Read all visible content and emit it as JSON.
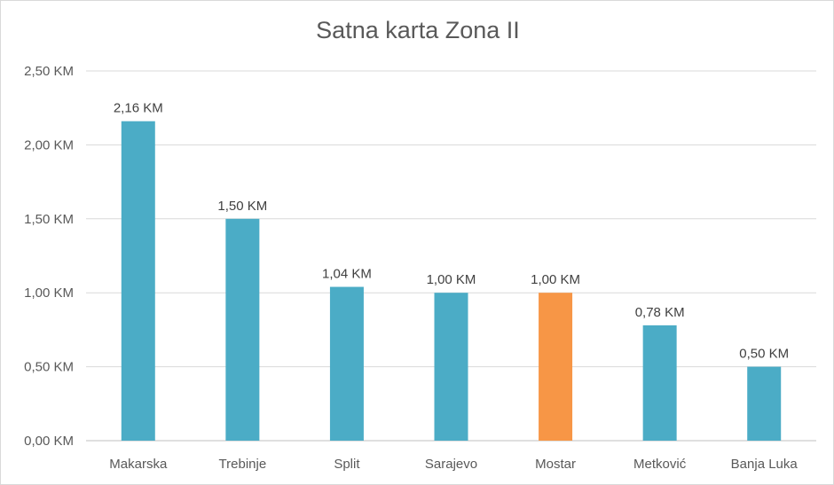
{
  "chart_data": {
    "type": "bar",
    "title": "Satna karta Zona II",
    "xlabel": "",
    "ylabel": "",
    "categories": [
      "Makarska",
      "Trebinje",
      "Split",
      "Sarajevo",
      "Mostar",
      "Metković",
      "Banja Luka"
    ],
    "values": [
      2.16,
      1.5,
      1.04,
      1.0,
      1.0,
      0.78,
      0.5
    ],
    "value_labels": [
      "2,16 KM",
      "1,50 KM",
      "1,04 KM",
      "1,00 KM",
      "1,00 KM",
      "0,78 KM",
      "0,50 KM"
    ],
    "ylim": [
      0,
      2.5
    ],
    "yticks": [
      0,
      0.5,
      1.0,
      1.5,
      2.0,
      2.5
    ],
    "ytick_labels": [
      "0,00 KM",
      "0,50 KM",
      "1,00 KM",
      "1,50 KM",
      "2,00 KM",
      "2,50 KM"
    ],
    "grid": true,
    "legend": "none",
    "colors": {
      "bar": "#4bacc6",
      "highlight": "#f79646",
      "grid": "#d9d9d9",
      "axis": "#bfbfbf"
    },
    "highlight_category": "Mostar"
  }
}
